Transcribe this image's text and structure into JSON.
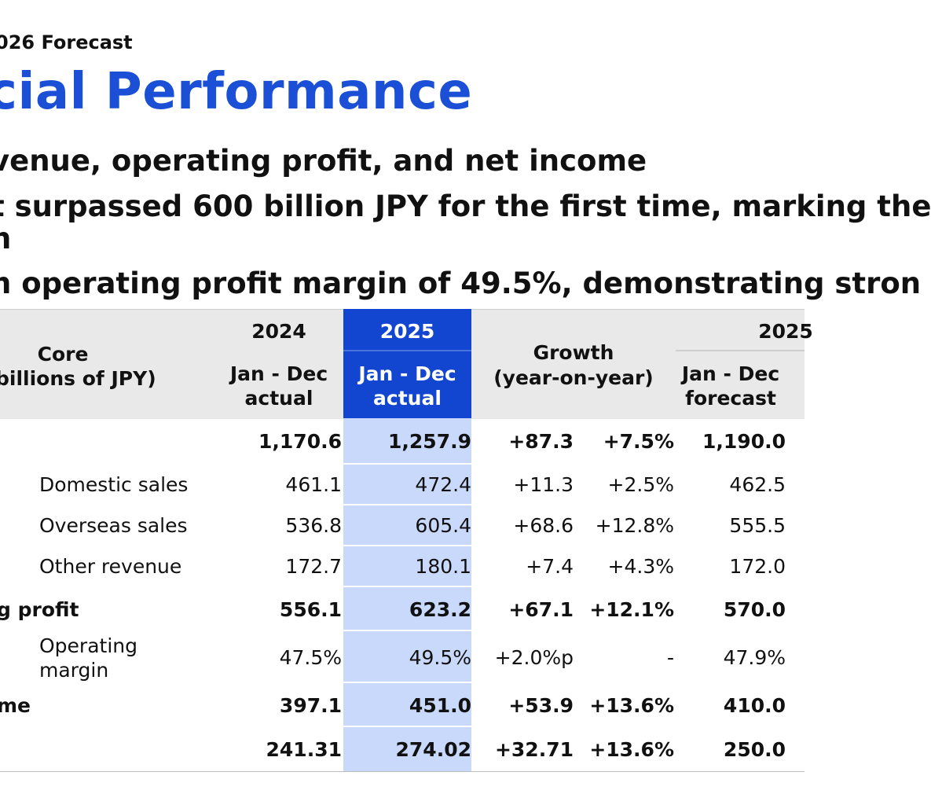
{
  "header": {
    "crumb": "026 Forecast",
    "title": "cial Performance"
  },
  "bullets": [
    "venue, operating profit, and net income",
    "t surpassed 600 billion JPY for the first time, marking the",
    "h",
    "n operating profit margin of 49.5%, demonstrating stron"
  ],
  "table": {
    "header": {
      "core_line1": "Core",
      "core_line2": "billions of JPY)",
      "y2024": "2024",
      "y2024_sub1": "Jan - Dec",
      "y2024_sub2": "actual",
      "y2025": "2025",
      "y2025_sub1": "Jan - Dec",
      "y2025_sub2": "actual",
      "growth1": "Growth",
      "growth2": "(year-on-year)",
      "y2025f": "2025",
      "y2025f_sub1": "Jan - Dec",
      "y2025f_sub2": "forecast"
    },
    "rows": [
      {
        "label": "",
        "v2024": "1,170.6",
        "v2025": "1,257.9",
        "gabs": "+87.3",
        "gpct": "+7.5%",
        "f2025": "1,190.0",
        "bold": true
      },
      {
        "label": "Domestic sales",
        "v2024": "461.1",
        "v2025": "472.4",
        "gabs": "+11.3",
        "gpct": "+2.5%",
        "f2025": "462.5",
        "bold": false
      },
      {
        "label": "Overseas sales",
        "v2024": "536.8",
        "v2025": "605.4",
        "gabs": "+68.6",
        "gpct": "+12.8%",
        "f2025": "555.5",
        "bold": false
      },
      {
        "label": "Other revenue",
        "v2024": "172.7",
        "v2025": "180.1",
        "gabs": "+7.4",
        "gpct": "+4.3%",
        "f2025": "172.0",
        "bold": false
      },
      {
        "label": "g profit",
        "v2024": "556.1",
        "v2025": "623.2",
        "gabs": "+67.1",
        "gpct": "+12.1%",
        "f2025": "570.0",
        "bold": true
      },
      {
        "label1": "Operating",
        "label2": "margin",
        "v2024": "47.5%",
        "v2025": "49.5%",
        "gabs": "+2.0%p",
        "gpct": "-",
        "f2025": "47.9%",
        "bold": false
      },
      {
        "label": "me",
        "v2024": "397.1",
        "v2025": "451.0",
        "gabs": "+53.9",
        "gpct": "+13.6%",
        "f2025": "410.0",
        "bold": true
      },
      {
        "label": "",
        "v2024": "241.31",
        "v2025": "274.02",
        "gabs": "+32.71",
        "gpct": "+13.6%",
        "f2025": "250.0",
        "bold": true
      }
    ]
  }
}
